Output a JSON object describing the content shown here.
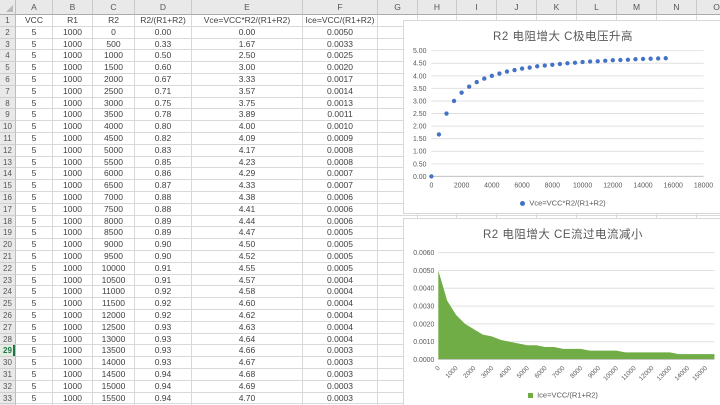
{
  "spreadsheet": {
    "column_letters": [
      "A",
      "B",
      "C",
      "D",
      "E",
      "F",
      "G",
      "H",
      "I",
      "J",
      "K",
      "L",
      "M",
      "N",
      "O"
    ],
    "headers": [
      "VCC",
      "R1",
      "R2",
      "R2/(R1+R2)",
      "Vce=VCC*R2/(R1+R2)",
      "Ice=VCC/(R1+R2)"
    ],
    "rows": [
      [
        "5",
        "1000",
        "0",
        "0.00",
        "0.00",
        "0.0050"
      ],
      [
        "5",
        "1000",
        "500",
        "0.33",
        "1.67",
        "0.0033"
      ],
      [
        "5",
        "1000",
        "1000",
        "0.50",
        "2.50",
        "0.0025"
      ],
      [
        "5",
        "1000",
        "1500",
        "0.60",
        "3.00",
        "0.0020"
      ],
      [
        "5",
        "1000",
        "2000",
        "0.67",
        "3.33",
        "0.0017"
      ],
      [
        "5",
        "1000",
        "2500",
        "0.71",
        "3.57",
        "0.0014"
      ],
      [
        "5",
        "1000",
        "3000",
        "0.75",
        "3.75",
        "0.0013"
      ],
      [
        "5",
        "1000",
        "3500",
        "0.78",
        "3.89",
        "0.0011"
      ],
      [
        "5",
        "1000",
        "4000",
        "0.80",
        "4.00",
        "0.0010"
      ],
      [
        "5",
        "1000",
        "4500",
        "0.82",
        "4.09",
        "0.0009"
      ],
      [
        "5",
        "1000",
        "5000",
        "0.83",
        "4.17",
        "0.0008"
      ],
      [
        "5",
        "1000",
        "5500",
        "0.85",
        "4.23",
        "0.0008"
      ],
      [
        "5",
        "1000",
        "6000",
        "0.86",
        "4.29",
        "0.0007"
      ],
      [
        "5",
        "1000",
        "6500",
        "0.87",
        "4.33",
        "0.0007"
      ],
      [
        "5",
        "1000",
        "7000",
        "0.88",
        "4.38",
        "0.0006"
      ],
      [
        "5",
        "1000",
        "7500",
        "0.88",
        "4.41",
        "0.0006"
      ],
      [
        "5",
        "1000",
        "8000",
        "0.89",
        "4.44",
        "0.0006"
      ],
      [
        "5",
        "1000",
        "8500",
        "0.89",
        "4.47",
        "0.0005"
      ],
      [
        "5",
        "1000",
        "9000",
        "0.90",
        "4.50",
        "0.0005"
      ],
      [
        "5",
        "1000",
        "9500",
        "0.90",
        "4.52",
        "0.0005"
      ],
      [
        "5",
        "1000",
        "10000",
        "0.91",
        "4.55",
        "0.0005"
      ],
      [
        "5",
        "1000",
        "10500",
        "0.91",
        "4.57",
        "0.0004"
      ],
      [
        "5",
        "1000",
        "11000",
        "0.92",
        "4.58",
        "0.0004"
      ],
      [
        "5",
        "1000",
        "11500",
        "0.92",
        "4.60",
        "0.0004"
      ],
      [
        "5",
        "1000",
        "12000",
        "0.92",
        "4.62",
        "0.0004"
      ],
      [
        "5",
        "1000",
        "12500",
        "0.93",
        "4.63",
        "0.0004"
      ],
      [
        "5",
        "1000",
        "13000",
        "0.93",
        "4.64",
        "0.0004"
      ],
      [
        "5",
        "1000",
        "13500",
        "0.93",
        "4.66",
        "0.0003"
      ],
      [
        "5",
        "1000",
        "14000",
        "0.93",
        "4.67",
        "0.0003"
      ],
      [
        "5",
        "1000",
        "14500",
        "0.94",
        "4.68",
        "0.0003"
      ],
      [
        "5",
        "1000",
        "15000",
        "0.94",
        "4.69",
        "0.0003"
      ],
      [
        "5",
        "1000",
        "15500",
        "0.94",
        "4.70",
        "0.0003"
      ]
    ],
    "visible_rows": 34,
    "selected_row": 29
  },
  "chart_data": [
    {
      "type": "scatter",
      "title": "R2 电阻增大 C极电压升高",
      "legend": "Vce=VCC*R2/(R1+R2)",
      "x": [
        0,
        500,
        1000,
        1500,
        2000,
        2500,
        3000,
        3500,
        4000,
        4500,
        5000,
        5500,
        6000,
        6500,
        7000,
        7500,
        8000,
        8500,
        9000,
        9500,
        10000,
        10500,
        11000,
        11500,
        12000,
        12500,
        13000,
        13500,
        14000,
        14500,
        15000,
        15500
      ],
      "y": [
        0.0,
        1.67,
        2.5,
        3.0,
        3.33,
        3.57,
        3.75,
        3.89,
        4.0,
        4.09,
        4.17,
        4.23,
        4.29,
        4.33,
        4.38,
        4.41,
        4.44,
        4.47,
        4.5,
        4.52,
        4.55,
        4.57,
        4.58,
        4.6,
        4.62,
        4.63,
        4.64,
        4.66,
        4.67,
        4.68,
        4.69,
        4.7
      ],
      "xlim": [
        0,
        18000
      ],
      "ylim": [
        0,
        5
      ],
      "x_ticks": [
        "0",
        "2000",
        "4000",
        "6000",
        "8000",
        "10000",
        "12000",
        "14000",
        "16000",
        "18000"
      ],
      "y_ticks": [
        "0.00",
        "0.50",
        "1.00",
        "1.50",
        "2.00",
        "2.50",
        "3.00",
        "3.50",
        "4.00",
        "4.50",
        "5.00"
      ],
      "marker_color": "#4472C4",
      "grid": true,
      "legend_position": "bottom"
    },
    {
      "type": "area",
      "title": "R2 电阻增大 CE流过电流减小",
      "legend": "Ice=VCC/(R1+R2)",
      "categories": [
        0,
        500,
        1000,
        1500,
        2000,
        2500,
        3000,
        3500,
        4000,
        4500,
        5000,
        5500,
        6000,
        6500,
        7000,
        7500,
        8000,
        8500,
        9000,
        9500,
        10000,
        10500,
        11000,
        11500,
        12000,
        12500,
        13000,
        13500,
        14000,
        14500,
        15000,
        15500
      ],
      "values": [
        0.005,
        0.0033,
        0.0025,
        0.002,
        0.0017,
        0.0014,
        0.0013,
        0.0011,
        0.001,
        0.0009,
        0.0008,
        0.0008,
        0.0007,
        0.0007,
        0.0006,
        0.0006,
        0.0006,
        0.0005,
        0.0005,
        0.0005,
        0.0005,
        0.0004,
        0.0004,
        0.0004,
        0.0004,
        0.0004,
        0.0004,
        0.0003,
        0.0003,
        0.0003,
        0.0003,
        0.0003
      ],
      "ylim": [
        0,
        0.006
      ],
      "y_ticks": [
        "0.0000",
        "0.0010",
        "0.0020",
        "0.0030",
        "0.0040",
        "0.0050",
        "0.0060"
      ],
      "x_ticks": [
        "0",
        "1000",
        "2000",
        "3000",
        "4000",
        "5000",
        "6000",
        "7000",
        "8000",
        "9000",
        "10000",
        "11000",
        "12000",
        "13000",
        "14000",
        "15000"
      ],
      "fill_color": "#70AD47",
      "grid": true,
      "legend_position": "bottom"
    }
  ],
  "colors": {
    "accent_blue": "#4472C4",
    "accent_green": "#70AD47",
    "chart_gridline": "#E0E0E0",
    "chart_text": "#595959",
    "sheet_gridline": "#D9D9D9",
    "header_bg": "#E9E9E9",
    "selected_green": "#217346"
  }
}
